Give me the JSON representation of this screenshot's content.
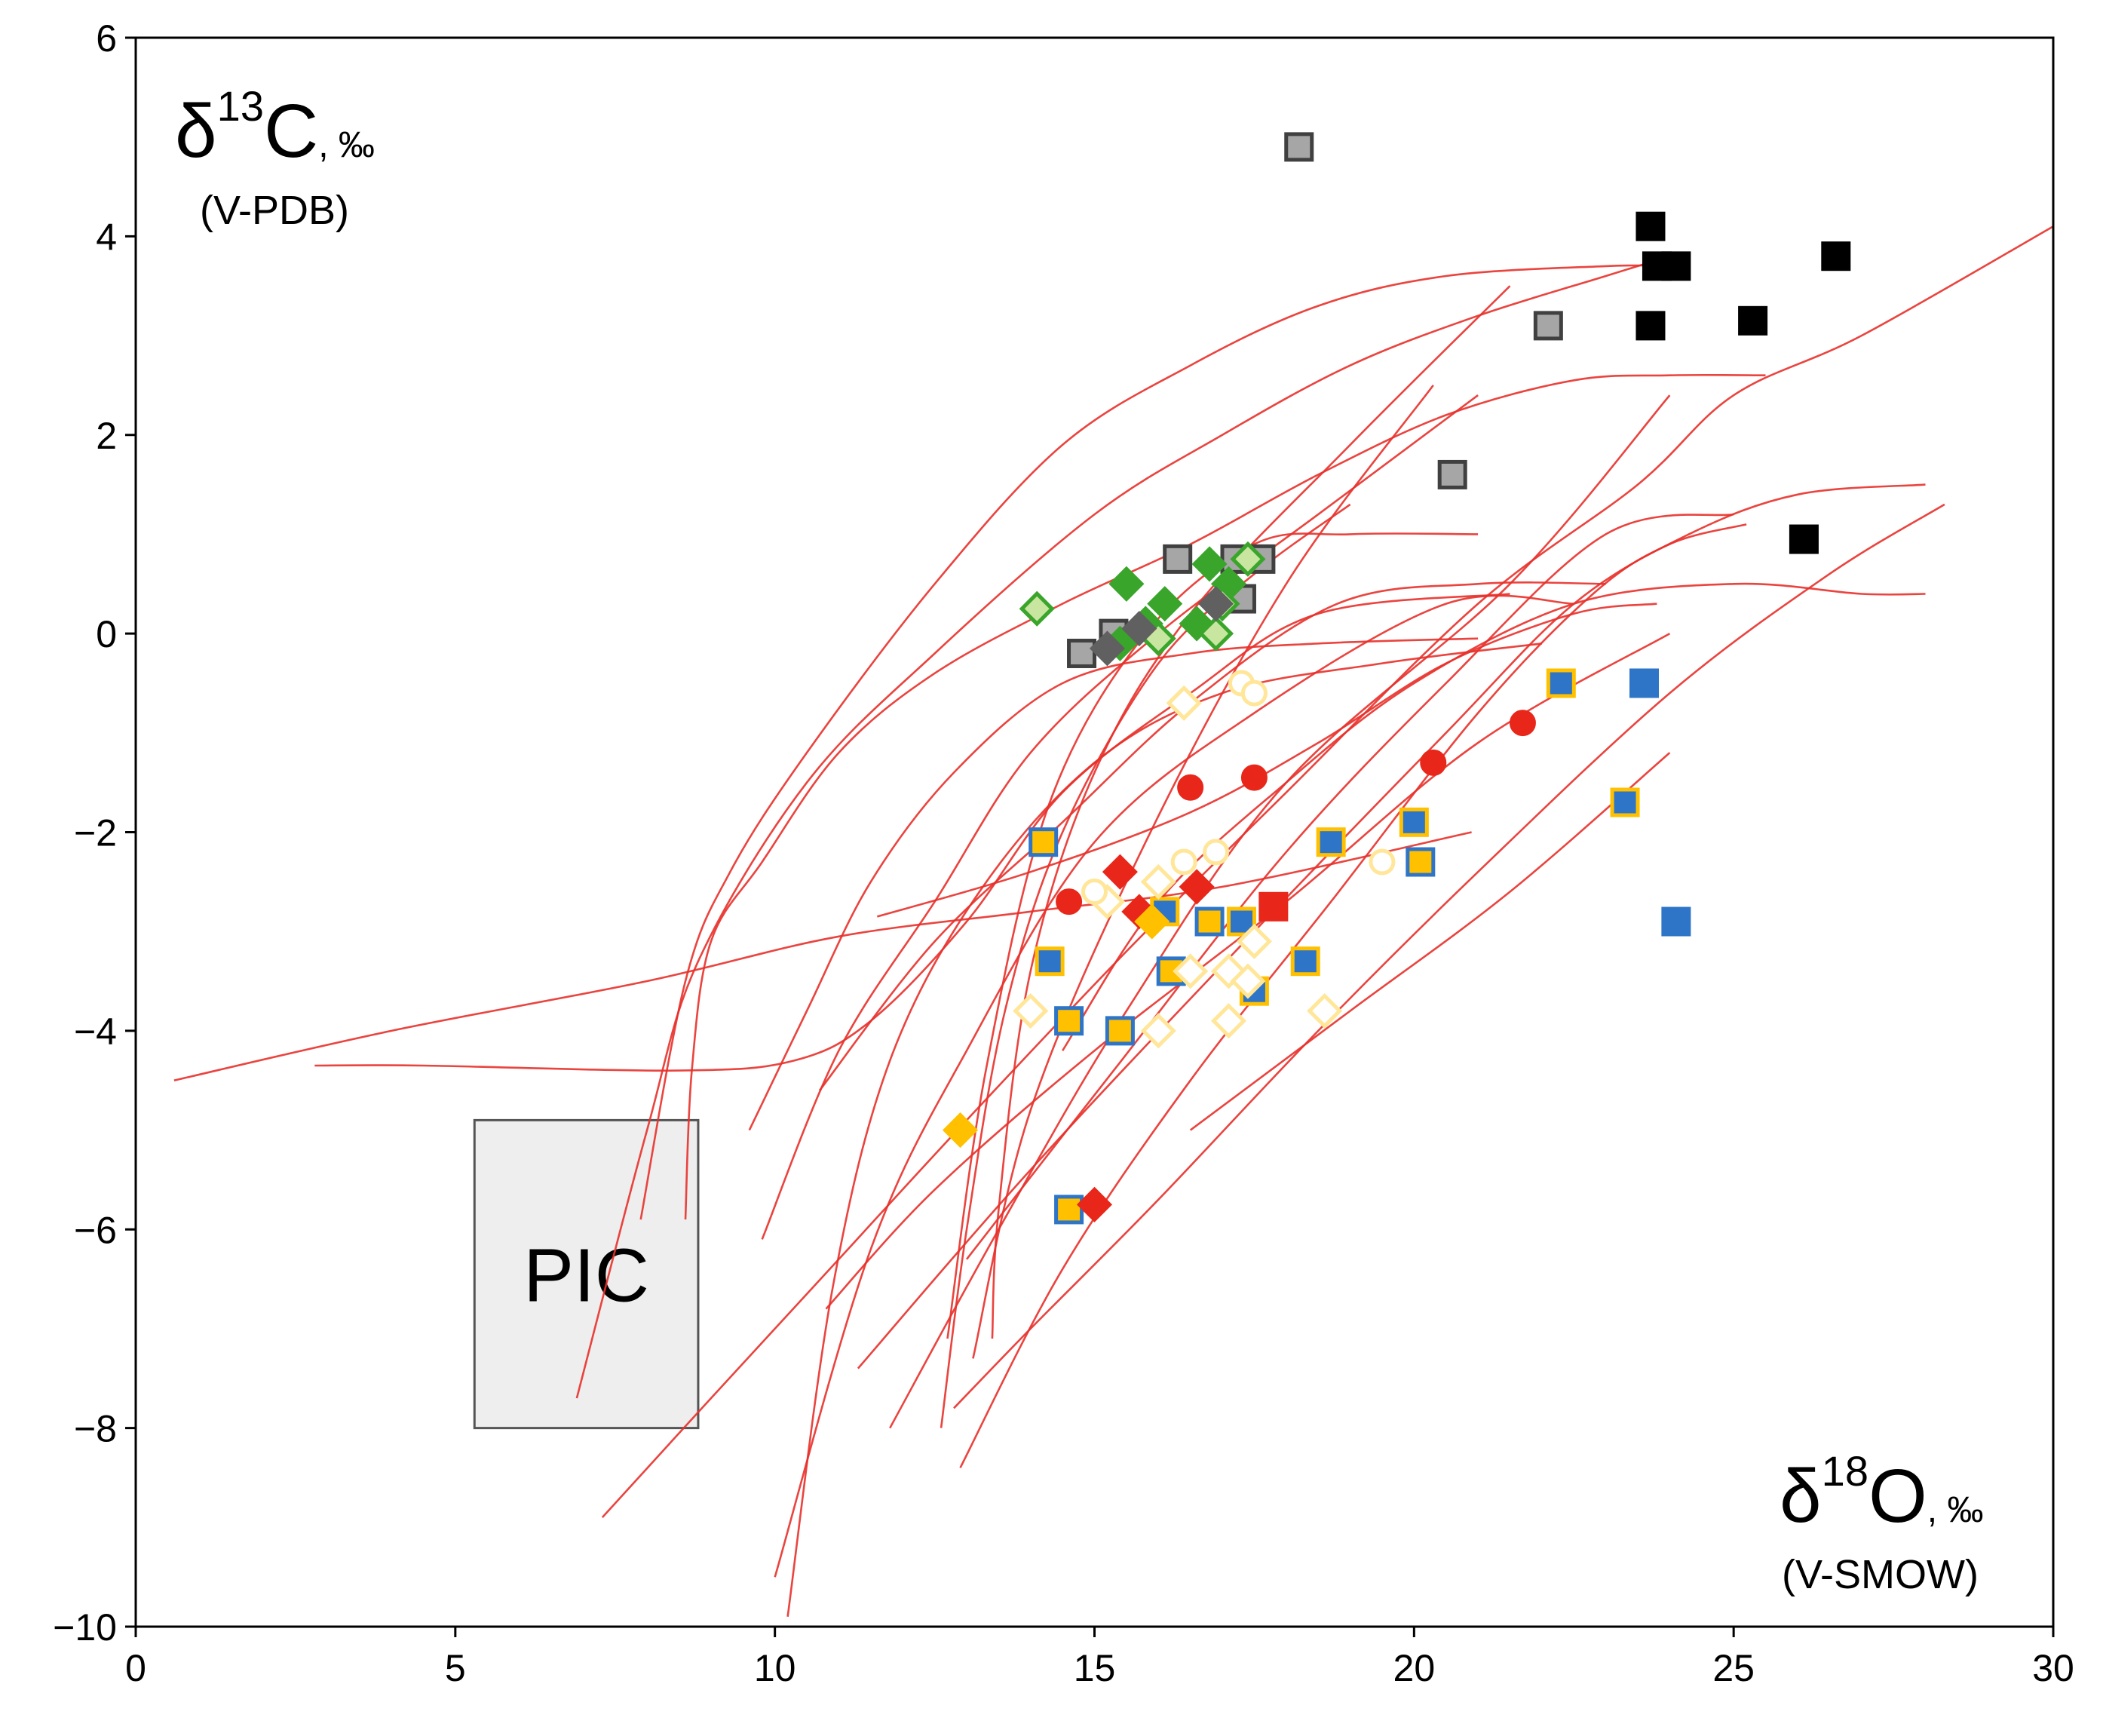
{
  "chart_data": {
    "type": "scatter",
    "xlim": [
      0,
      30
    ],
    "ylim": [
      -10,
      6
    ],
    "x_ticks": [
      "0",
      "5",
      "10",
      "15",
      "20",
      "25",
      "30"
    ],
    "y_ticks": [
      "6",
      "4",
      "2",
      "0",
      "−2",
      "−4",
      "−6",
      "−8",
      "−10"
    ],
    "y_axis_label": {
      "symbol": "δ",
      "superscript": "13",
      "element": "C",
      "unit": ", ‰",
      "reference": "(V-PDB)"
    },
    "x_axis_label": {
      "symbol": "δ",
      "superscript": "18",
      "element": "O",
      "unit": ", ‰",
      "reference": "(V-SMOW)"
    },
    "region": {
      "label": "PIC",
      "x_range": [
        5.3,
        8.8
      ],
      "y_range": [
        -8,
        -4.9
      ],
      "color": "#eeeeee"
    },
    "colors": {
      "curve": "#e8302a",
      "black": "#000000",
      "gray": "#a6a6a6",
      "blue": "#2e75c8",
      "yellow": "#ffc000",
      "red": "#e8271a",
      "green": "#3aa52b",
      "light_green": "#c8e6a0",
      "pale_yellow": "#ffe699"
    },
    "curves": [
      [
        [
          6.9,
          -7.7
        ],
        [
          8.0,
          -5.0
        ],
        [
          8.8,
          -3.3
        ],
        [
          10.5,
          -1.5
        ],
        [
          12.5,
          -0.2
        ],
        [
          15.0,
          1.2
        ],
        [
          17.0,
          2.0
        ],
        [
          19.0,
          2.7
        ],
        [
          21.0,
          3.2
        ],
        [
          23.0,
          3.6
        ],
        [
          24.0,
          3.8
        ]
      ],
      [
        [
          7.9,
          -5.9
        ],
        [
          8.6,
          -3.5
        ],
        [
          9.3,
          -2.4
        ],
        [
          10.5,
          -1.2
        ],
        [
          12.5,
          0.5
        ],
        [
          14.5,
          1.9
        ],
        [
          16.5,
          2.7
        ],
        [
          18.5,
          3.3
        ],
        [
          20.5,
          3.6
        ],
        [
          23.0,
          3.7
        ],
        [
          24.0,
          3.7
        ]
      ],
      [
        [
          8.6,
          -5.9
        ],
        [
          8.7,
          -4.4
        ],
        [
          9.0,
          -3.1
        ],
        [
          9.8,
          -2.3
        ],
        [
          11.0,
          -1.2
        ],
        [
          12.5,
          -0.4
        ],
        [
          14.5,
          0.3
        ],
        [
          16.5,
          0.9
        ],
        [
          18.5,
          1.6
        ],
        [
          20.5,
          2.2
        ],
        [
          22.5,
          2.55
        ],
        [
          24.0,
          2.6
        ],
        [
          25.5,
          2.6
        ]
      ],
      [
        [
          0.6,
          -4.5
        ],
        [
          4.0,
          -4.0
        ],
        [
          8.0,
          -3.5
        ],
        [
          11.0,
          -3.05
        ],
        [
          14.0,
          -2.8
        ],
        [
          17.0,
          -2.55
        ],
        [
          20.9,
          -2.0
        ]
      ],
      [
        [
          2.8,
          -4.35
        ],
        [
          4.5,
          -4.35
        ],
        [
          8.5,
          -4.4
        ],
        [
          10.3,
          -4.3
        ],
        [
          11.5,
          -3.9
        ],
        [
          13.0,
          -2.9
        ],
        [
          14.5,
          -1.6
        ],
        [
          16.5,
          -0.6
        ],
        [
          18.5,
          0.2
        ],
        [
          21.5,
          0.4
        ]
      ],
      [
        [
          10.2,
          -9.9
        ],
        [
          10.9,
          -6.6
        ],
        [
          11.8,
          -4.3
        ],
        [
          13.2,
          -2.6
        ],
        [
          15.0,
          -1.3
        ],
        [
          17.0,
          -0.6
        ],
        [
          19.5,
          -0.3
        ],
        [
          22.0,
          -0.1
        ]
      ],
      [
        [
          10.0,
          -9.5
        ],
        [
          11.5,
          -6.2
        ],
        [
          13.0,
          -4.2
        ],
        [
          15.0,
          -2.1
        ],
        [
          17.5,
          -0.8
        ],
        [
          20.5,
          0.3
        ],
        [
          22.5,
          0.3
        ]
      ],
      [
        [
          9.6,
          -5.0
        ],
        [
          10.5,
          -3.8
        ],
        [
          11.5,
          -2.5
        ],
        [
          12.8,
          -1.4
        ],
        [
          14.5,
          -0.5
        ],
        [
          16.5,
          -0.2
        ],
        [
          18.5,
          -0.1
        ],
        [
          21.0,
          -0.05
        ]
      ],
      [
        [
          9.8,
          -6.1
        ],
        [
          11.0,
          -4.2
        ],
        [
          12.5,
          -2.7
        ],
        [
          14.0,
          -1.2
        ],
        [
          16.0,
          0.0
        ],
        [
          18.5,
          1.2
        ],
        [
          21.0,
          2.4
        ]
      ],
      [
        [
          12.6,
          -8.0
        ],
        [
          13.0,
          -6.0
        ],
        [
          13.6,
          -3.8
        ],
        [
          14.5,
          -2.0
        ],
        [
          16.0,
          -0.3
        ],
        [
          17.5,
          0.6
        ],
        [
          19.0,
          1.3
        ]
      ],
      [
        [
          13.4,
          -7.1
        ],
        [
          13.5,
          -5.8
        ],
        [
          14.0,
          -3.4
        ],
        [
          15.0,
          -1.4
        ],
        [
          16.5,
          0.2
        ],
        [
          19.0,
          1.9
        ],
        [
          21.5,
          3.5
        ]
      ],
      [
        [
          12.7,
          -7.1
        ],
        [
          13.3,
          -4.4
        ],
        [
          14.3,
          -1.7
        ],
        [
          15.8,
          0.0
        ],
        [
          17.5,
          0.9
        ],
        [
          19.0,
          1.0
        ],
        [
          21.0,
          1.0
        ]
      ],
      [
        [
          13.1,
          -7.3
        ],
        [
          14.0,
          -4.8
        ],
        [
          15.8,
          -2.1
        ],
        [
          18.0,
          0.5
        ],
        [
          20.3,
          2.5
        ]
      ],
      [
        [
          11.8,
          -8.0
        ],
        [
          13.5,
          -6.0
        ],
        [
          15.5,
          -3.8
        ],
        [
          18.0,
          -1.5
        ],
        [
          21.5,
          0.5
        ],
        [
          24.0,
          2.4
        ]
      ],
      [
        [
          12.9,
          -8.4
        ],
        [
          14.5,
          -6.4
        ],
        [
          16.5,
          -4.5
        ],
        [
          18.7,
          -2.7
        ],
        [
          21.0,
          -0.8
        ],
        [
          22.8,
          0.4
        ],
        [
          24.0,
          0.9
        ],
        [
          25.2,
          1.1
        ]
      ],
      [
        [
          13.0,
          -6.3
        ],
        [
          15.3,
          -4.4
        ],
        [
          18.0,
          -2.2
        ],
        [
          20.5,
          -0.5
        ],
        [
          23.0,
          1.0
        ],
        [
          25.0,
          1.2
        ]
      ],
      [
        [
          11.3,
          -7.4
        ],
        [
          14.0,
          -5.4
        ],
        [
          17.5,
          -3.0
        ],
        [
          20.5,
          -1.0
        ],
        [
          22.5,
          0.3
        ],
        [
          24.3,
          1.0
        ],
        [
          26.0,
          1.4
        ],
        [
          28.0,
          1.5
        ]
      ],
      [
        [
          14.5,
          -4.2
        ],
        [
          16.0,
          -2.7
        ],
        [
          18.0,
          -1.5
        ],
        [
          20.0,
          -0.5
        ],
        [
          22.5,
          0.3
        ],
        [
          25.0,
          0.5
        ],
        [
          27.0,
          0.4
        ],
        [
          28.0,
          0.4
        ]
      ],
      [
        [
          10.7,
          -4.6
        ],
        [
          12.5,
          -3.1
        ],
        [
          14.5,
          -1.9
        ],
        [
          16.5,
          -0.7
        ],
        [
          18.8,
          0.3
        ],
        [
          21.0,
          0.5
        ],
        [
          23.0,
          0.5
        ]
      ],
      [
        [
          11.6,
          -2.85
        ],
        [
          14.0,
          -2.4
        ],
        [
          16.5,
          -1.8
        ],
        [
          18.5,
          -1.1
        ],
        [
          20.5,
          -0.3
        ],
        [
          22.5,
          0.2
        ],
        [
          23.8,
          0.3
        ]
      ],
      [
        [
          10.8,
          -6.8
        ],
        [
          12.5,
          -5.6
        ],
        [
          15.0,
          -4.2
        ],
        [
          18.0,
          -2.7
        ],
        [
          21.0,
          -1.1
        ],
        [
          24.0,
          0.0
        ]
      ],
      [
        [
          7.3,
          -8.9
        ],
        [
          9.0,
          -7.7
        ],
        [
          11.0,
          -6.3
        ],
        [
          13.0,
          -4.9
        ],
        [
          15.5,
          -3.2
        ],
        [
          18.0,
          -1.6
        ],
        [
          21.0,
          0.3
        ],
        [
          23.5,
          1.5
        ],
        [
          25.0,
          2.4
        ],
        [
          27.0,
          3.0
        ],
        [
          30.0,
          4.1
        ]
      ],
      [
        [
          12.8,
          -7.8
        ],
        [
          14.0,
          -7.0
        ],
        [
          16.0,
          -5.7
        ],
        [
          18.5,
          -4.0
        ],
        [
          21.0,
          -2.4
        ],
        [
          24.0,
          -0.6
        ],
        [
          26.5,
          0.6
        ],
        [
          28.3,
          1.3
        ]
      ],
      [
        [
          16.5,
          -5.0
        ],
        [
          19.0,
          -3.8
        ],
        [
          21.5,
          -2.6
        ],
        [
          24.0,
          -1.2
        ]
      ]
    ],
    "series": [
      {
        "name": "black squares",
        "marker": "square",
        "fill": "#000000",
        "stroke": "#000000",
        "points": [
          [
            23.7,
            4.1
          ],
          [
            23.8,
            3.7
          ],
          [
            24.1,
            3.7
          ],
          [
            23.7,
            3.1
          ],
          [
            25.3,
            3.15
          ],
          [
            26.6,
            3.8
          ],
          [
            26.1,
            0.95
          ]
        ]
      },
      {
        "name": "gray squares",
        "marker": "square",
        "fill": "#a6a6a6",
        "stroke": "#404040",
        "points": [
          [
            18.2,
            4.9
          ],
          [
            22.1,
            3.1
          ],
          [
            20.6,
            1.6
          ],
          [
            16.3,
            0.75
          ],
          [
            17.2,
            0.75
          ],
          [
            17.6,
            0.75
          ],
          [
            17.3,
            0.35
          ],
          [
            15.3,
            0.0
          ],
          [
            14.8,
            -0.2
          ]
        ]
      },
      {
        "name": "green diamonds",
        "marker": "diamond",
        "fill": "#3aa52b",
        "stroke": "#3aa52b",
        "points": [
          [
            15.5,
            0.5
          ],
          [
            16.1,
            0.3
          ],
          [
            16.8,
            0.7
          ],
          [
            15.8,
            0.1
          ],
          [
            15.4,
            -0.1
          ],
          [
            16.6,
            0.1
          ],
          [
            17.1,
            0.5
          ]
        ]
      },
      {
        "name": "light green diamonds",
        "marker": "diamond",
        "fill": "#c8e6a0",
        "stroke": "#3aa52b",
        "points": [
          [
            14.1,
            0.25
          ],
          [
            17.4,
            0.75
          ],
          [
            17.0,
            0.3
          ],
          [
            16.0,
            -0.05
          ],
          [
            16.9,
            0.0
          ]
        ]
      },
      {
        "name": "dark gray small diamonds",
        "marker": "diamond",
        "fill": "#606060",
        "stroke": "#606060",
        "points": [
          [
            15.7,
            0.05
          ],
          [
            16.9,
            0.3
          ],
          [
            15.2,
            -0.15
          ]
        ]
      },
      {
        "name": "blue squares",
        "marker": "square",
        "fill": "#2e75c8",
        "stroke": "#2e75c8",
        "points": [
          [
            23.6,
            -0.5
          ],
          [
            24.1,
            -2.9
          ]
        ]
      },
      {
        "name": "yellow-bordered blue squares",
        "marker": "square",
        "fill": "#2e75c8",
        "stroke": "#ffc000",
        "points": [
          [
            22.3,
            -0.5
          ],
          [
            23.3,
            -1.7
          ],
          [
            18.7,
            -2.1
          ],
          [
            20.0,
            -1.9
          ],
          [
            17.3,
            -2.9
          ],
          [
            14.3,
            -3.3
          ],
          [
            18.3,
            -3.3
          ],
          [
            17.5,
            -3.6
          ],
          [
            16.1,
            -2.8
          ]
        ]
      },
      {
        "name": "blue-bordered yellow squares",
        "marker": "square",
        "fill": "#ffc000",
        "stroke": "#2e75c8",
        "points": [
          [
            14.2,
            -2.1
          ],
          [
            20.1,
            -2.3
          ],
          [
            16.8,
            -2.9
          ],
          [
            16.2,
            -3.4
          ],
          [
            14.6,
            -3.9
          ],
          [
            15.4,
            -4.0
          ],
          [
            14.6,
            -5.8
          ]
        ]
      },
      {
        "name": "red squares",
        "marker": "square",
        "fill": "#e8271a",
        "stroke": "#e8271a",
        "points": [
          [
            17.8,
            -2.75
          ]
        ]
      },
      {
        "name": "red circles",
        "marker": "circle",
        "fill": "#e8271a",
        "stroke": "#e8271a",
        "points": [
          [
            21.7,
            -0.9
          ],
          [
            20.3,
            -1.3
          ],
          [
            16.5,
            -1.55
          ],
          [
            17.5,
            -1.45
          ],
          [
            14.6,
            -2.7
          ]
        ]
      },
      {
        "name": "red diamonds",
        "marker": "diamond",
        "fill": "#e8271a",
        "stroke": "#e8271a",
        "points": [
          [
            15.4,
            -2.4
          ],
          [
            16.6,
            -2.55
          ],
          [
            15.7,
            -2.8
          ],
          [
            15.0,
            -5.75
          ]
        ]
      },
      {
        "name": "orange diamonds",
        "marker": "diamond",
        "fill": "#ffc000",
        "stroke": "#ffc000",
        "points": [
          [
            12.9,
            -5.0
          ],
          [
            15.9,
            -2.9
          ]
        ]
      },
      {
        "name": "pale yellow open diamonds",
        "marker": "diamond",
        "fill": "#ffffff",
        "stroke": "#ffe699",
        "points": [
          [
            16.4,
            -0.7
          ],
          [
            16.0,
            -2.5
          ],
          [
            17.5,
            -3.1
          ],
          [
            17.1,
            -3.4
          ],
          [
            16.5,
            -3.4
          ],
          [
            17.4,
            -3.5
          ],
          [
            14.0,
            -3.8
          ],
          [
            16.0,
            -4.0
          ],
          [
            17.1,
            -3.9
          ],
          [
            18.6,
            -3.8
          ],
          [
            15.2,
            -2.7
          ]
        ]
      },
      {
        "name": "pale yellow open circles",
        "marker": "circle",
        "fill": "#ffffff",
        "stroke": "#ffe699",
        "points": [
          [
            17.3,
            -0.5
          ],
          [
            17.5,
            -0.6
          ],
          [
            16.4,
            -2.3
          ],
          [
            16.9,
            -2.2
          ],
          [
            19.5,
            -2.3
          ],
          [
            15.0,
            -2.6
          ]
        ]
      }
    ]
  }
}
